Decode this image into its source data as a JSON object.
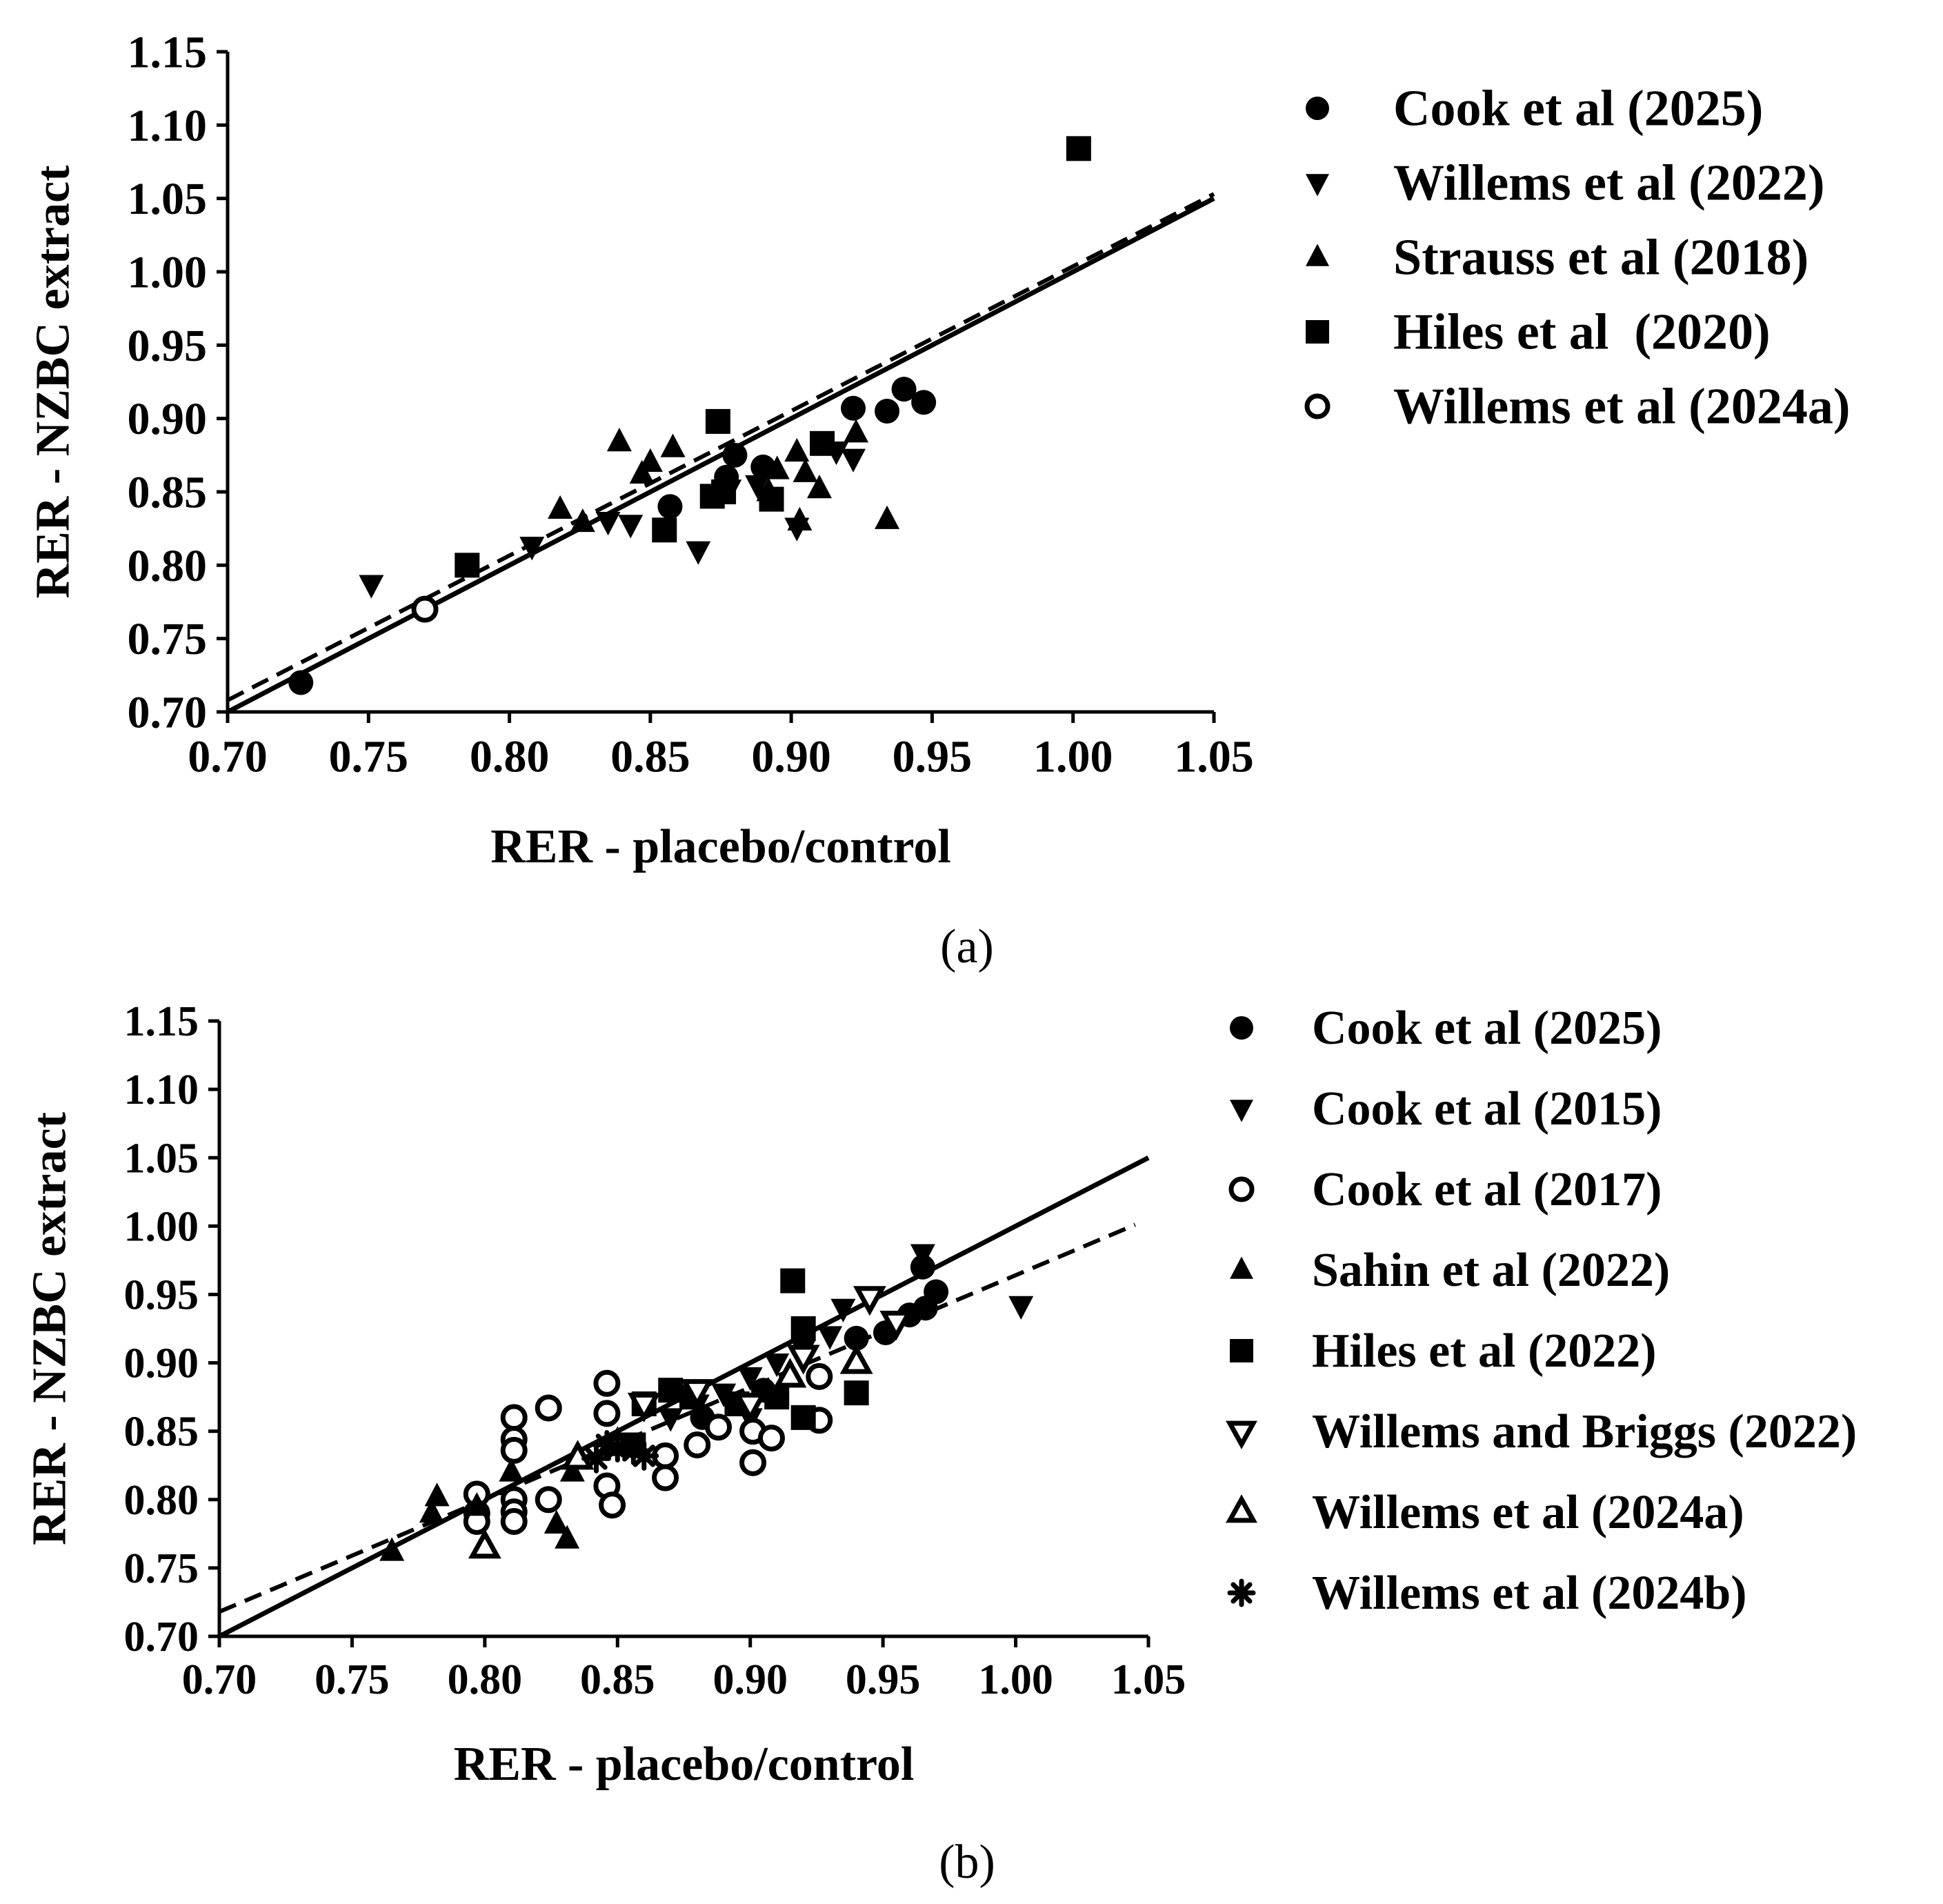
{
  "chart_data": [
    {
      "panel": "(a)",
      "type": "scatter",
      "xlabel": "RER - placebo/control",
      "ylabel": "RER - NZBC extract",
      "xlim": [
        0.7,
        1.05
      ],
      "ylim": [
        0.7,
        1.15
      ],
      "xticks": [
        "0.70",
        "0.75",
        "0.80",
        "0.85",
        "0.90",
        "0.95",
        "1.00",
        "1.05"
      ],
      "yticks": [
        "0.70",
        "0.75",
        "0.80",
        "0.85",
        "0.90",
        "0.95",
        "1.00",
        "1.05",
        "1.10",
        "1.15"
      ],
      "legend_position": "right",
      "lines": [
        {
          "name": "identity",
          "style": "solid",
          "points": [
            [
              0.7,
              0.7
            ],
            [
              1.05,
              1.05
            ]
          ]
        },
        {
          "name": "regression",
          "style": "dashed",
          "points": [
            [
              0.7,
              0.708
            ],
            [
              1.05,
              1.053
            ]
          ]
        }
      ],
      "series": [
        {
          "name": "Cook et al (2025)",
          "marker": "circle-filled",
          "points": [
            [
              0.726,
              0.72
            ],
            [
              0.857,
              0.84
            ],
            [
              0.877,
              0.86
            ],
            [
              0.88,
              0.875
            ],
            [
              0.89,
              0.867
            ],
            [
              0.922,
              0.907
            ],
            [
              0.934,
              0.905
            ],
            [
              0.94,
              0.92
            ],
            [
              0.947,
              0.911
            ]
          ]
        },
        {
          "name": "Willems et al (2022)",
          "marker": "triangle-down-filled",
          "points": [
            [
              0.751,
              0.787
            ],
            [
              0.808,
              0.813
            ],
            [
              0.835,
              0.83
            ],
            [
              0.843,
              0.828
            ],
            [
              0.867,
              0.81
            ],
            [
              0.878,
              0.852
            ],
            [
              0.888,
              0.855
            ],
            [
              0.916,
              0.878
            ],
            [
              0.922,
              0.873
            ],
            [
              0.902,
              0.826
            ]
          ]
        },
        {
          "name": "Strauss et al (2018)",
          "marker": "triangle-up-filled",
          "points": [
            [
              0.818,
              0.838
            ],
            [
              0.826,
              0.829
            ],
            [
              0.839,
              0.884
            ],
            [
              0.847,
              0.862
            ],
            [
              0.85,
              0.87
            ],
            [
              0.858,
              0.88
            ],
            [
              0.892,
              0.85
            ],
            [
              0.895,
              0.865
            ],
            [
              0.902,
              0.877
            ],
            [
              0.905,
              0.863
            ],
            [
              0.91,
              0.852
            ],
            [
              0.923,
              0.89
            ],
            [
              0.934,
              0.831
            ],
            [
              0.903,
              0.83
            ]
          ]
        },
        {
          "name": "Hiles et al  (2020)",
          "marker": "square-filled",
          "points": [
            [
              0.785,
              0.8
            ],
            [
              0.855,
              0.824
            ],
            [
              0.872,
              0.847
            ],
            [
              0.874,
              0.898
            ],
            [
              0.876,
              0.85
            ],
            [
              0.893,
              0.845
            ],
            [
              0.911,
              0.883
            ],
            [
              1.002,
              1.084
            ]
          ]
        },
        {
          "name": "Willems et al (2024a)",
          "marker": "circle-open",
          "points": [
            [
              0.77,
              0.77
            ]
          ]
        }
      ]
    },
    {
      "panel": "(b)",
      "type": "scatter",
      "xlabel": "RER - placebo/control",
      "ylabel": "RER - NZBC extract",
      "xlim": [
        0.7,
        1.05
      ],
      "ylim": [
        0.7,
        1.15
      ],
      "xticks": [
        "0.70",
        "0.75",
        "0.80",
        "0.85",
        "0.90",
        "0.95",
        "1.00",
        "1.05"
      ],
      "yticks": [
        "0.70",
        "0.75",
        "0.80",
        "0.85",
        "0.90",
        "0.95",
        "1.00",
        "1.05",
        "1.10",
        "1.15"
      ],
      "legend_position": "right",
      "lines": [
        {
          "name": "identity",
          "style": "solid",
          "points": [
            [
              0.7,
              0.7
            ],
            [
              1.05,
              1.05
            ]
          ]
        },
        {
          "name": "regression",
          "style": "dashed",
          "points": [
            [
              0.7,
              0.718
            ],
            [
              1.045,
              1.001
            ]
          ]
        }
      ],
      "series": [
        {
          "name": "Cook et al (2025)",
          "marker": "circle-filled",
          "points": [
            [
              0.94,
              0.918
            ],
            [
              0.951,
              0.922
            ],
            [
              0.96,
              0.935
            ],
            [
              0.966,
              0.94
            ],
            [
              0.97,
              0.952
            ],
            [
              0.965,
              0.97
            ],
            [
              0.882,
              0.86
            ],
            [
              0.905,
              0.88
            ]
          ]
        },
        {
          "name": "Cook et al (2015)",
          "marker": "triangle-down-filled",
          "points": [
            [
              0.88,
              0.87
            ],
            [
              0.9,
              0.89
            ],
            [
              0.91,
              0.9
            ],
            [
              0.92,
              0.91
            ],
            [
              0.93,
              0.92
            ],
            [
              0.935,
              0.94
            ],
            [
              0.945,
              0.945
            ],
            [
              0.965,
              0.98
            ],
            [
              1.002,
              0.942
            ],
            [
              0.9,
              0.86
            ],
            [
              0.89,
              0.878
            ],
            [
              0.87,
              0.86
            ]
          ]
        },
        {
          "name": "Cook et al (2017)",
          "marker": "circle-open",
          "points": [
            [
              0.797,
              0.804
            ],
            [
              0.797,
              0.79
            ],
            [
              0.797,
              0.784
            ],
            [
              0.811,
              0.86
            ],
            [
              0.811,
              0.844
            ],
            [
              0.811,
              0.836
            ],
            [
              0.811,
              0.8
            ],
            [
              0.811,
              0.791
            ],
            [
              0.811,
              0.784
            ],
            [
              0.824,
              0.867
            ],
            [
              0.824,
              0.8
            ],
            [
              0.846,
              0.885
            ],
            [
              0.846,
              0.863
            ],
            [
              0.846,
              0.81
            ],
            [
              0.848,
              0.796
            ],
            [
              0.868,
              0.832
            ],
            [
              0.868,
              0.816
            ],
            [
              0.88,
              0.84
            ],
            [
              0.888,
              0.853
            ],
            [
              0.901,
              0.827
            ],
            [
              0.901,
              0.85
            ],
            [
              0.908,
              0.845
            ],
            [
              0.926,
              0.858
            ],
            [
              0.926,
              0.89
            ]
          ]
        },
        {
          "name": "Sahin et al (2022)",
          "marker": "triangle-up-filled",
          "points": [
            [
              0.765,
              0.762
            ],
            [
              0.78,
              0.79
            ],
            [
              0.782,
              0.802
            ],
            [
              0.797,
              0.795
            ],
            [
              0.81,
              0.82
            ],
            [
              0.827,
              0.782
            ],
            [
              0.831,
              0.771
            ],
            [
              0.833,
              0.82
            ]
          ]
        },
        {
          "name": "Hiles et al (2022)",
          "marker": "square-filled",
          "points": [
            [
              0.856,
              0.84
            ],
            [
              0.86,
              0.87
            ],
            [
              0.87,
              0.88
            ],
            [
              0.878,
              0.875
            ],
            [
              0.895,
              0.87
            ],
            [
              0.91,
              0.875
            ],
            [
              0.916,
              0.96
            ],
            [
              0.92,
              0.925
            ],
            [
              0.92,
              0.86
            ],
            [
              0.94,
              0.878
            ]
          ]
        },
        {
          "name": "Willems and Briggs (2022)",
          "marker": "triangle-down-open",
          "points": [
            [
              0.86,
              0.87
            ],
            [
              0.88,
              0.88
            ],
            [
              0.9,
              0.87
            ],
            [
              0.92,
              0.905
            ],
            [
              0.945,
              0.948
            ],
            [
              0.955,
              0.93
            ]
          ]
        },
        {
          "name": "Willems et al (2024a)",
          "marker": "triangle-up-open",
          "points": [
            [
              0.8,
              0.765
            ],
            [
              0.835,
              0.83
            ],
            [
              0.85,
              0.84
            ],
            [
              0.915,
              0.89
            ],
            [
              0.94,
              0.9
            ]
          ]
        },
        {
          "name": "Willems et al (2024b)",
          "marker": "asterisk",
          "points": [
            [
              0.842,
              0.83
            ],
            [
              0.846,
              0.84
            ],
            [
              0.85,
              0.838
            ],
            [
              0.856,
              0.836
            ],
            [
              0.86,
              0.832
            ]
          ]
        }
      ]
    }
  ],
  "panels": [
    {
      "label": "(a)"
    },
    {
      "label": "(b)"
    }
  ]
}
